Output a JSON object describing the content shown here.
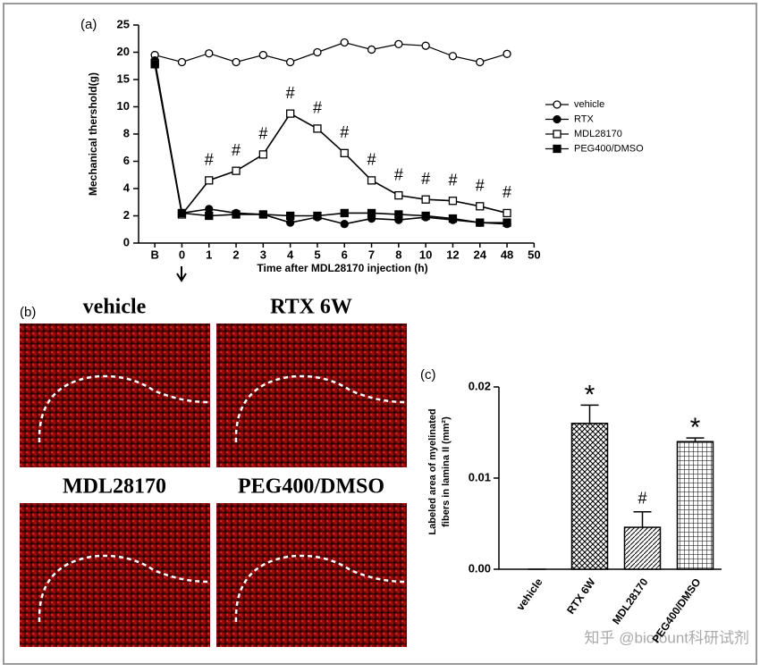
{
  "chart_data": [
    {
      "type": "line",
      "title": "(a)",
      "xlabel": "Time after MDL28170 injection (h)",
      "ylabel": "Mechanical thershold(g)",
      "categories": [
        "B",
        "0",
        "1",
        "2",
        "3",
        "4",
        "5",
        "6",
        "7",
        "8",
        "10",
        "12",
        "24",
        "48",
        "50"
      ],
      "ylim": [
        0,
        25
      ],
      "yticks": [
        0,
        2,
        4,
        6,
        8,
        10,
        15,
        20,
        25
      ],
      "series": [
        {
          "name": "vehicle",
          "color": "#000000",
          "marker": "circle-open",
          "values": [
            19.5,
            18.2,
            19.8,
            18.2,
            19.5,
            18.2,
            20,
            21.8,
            20.5,
            21.5,
            21.2,
            19.3,
            18.2,
            19.7,
            null
          ]
        },
        {
          "name": "RTX",
          "color": "#000000",
          "marker": "circle-filled",
          "values": [
            18.5,
            2.2,
            2.5,
            2.2,
            2.1,
            1.5,
            1.9,
            1.4,
            1.8,
            1.7,
            1.9,
            1.7,
            1.5,
            1.4,
            null
          ]
        },
        {
          "name": "MDL28170",
          "color": "#000000",
          "marker": "square-open",
          "values": [
            18,
            2.1,
            4.6,
            5.3,
            6.5,
            9.5,
            8.4,
            6.6,
            4.6,
            3.5,
            3.2,
            3.1,
            2.7,
            2.2,
            null
          ]
        },
        {
          "name": "PEG400/DMSO",
          "color": "#000000",
          "marker": "square-filled",
          "values": [
            17.8,
            2.2,
            2.0,
            2.1,
            2.1,
            2.0,
            2.0,
            2.2,
            2.2,
            2.1,
            2.0,
            1.8,
            1.5,
            1.5,
            null
          ]
        }
      ],
      "annotations": [
        null,
        null,
        "#",
        "#",
        "#",
        "#",
        "#",
        "#",
        "#",
        "#",
        "#",
        "#",
        "#",
        "#",
        null
      ],
      "legend": "right"
    },
    {
      "type": "bar",
      "title": "(c)",
      "ylabel": [
        "Labeled area of myelinated",
        "fibers in lamina II (mm²)"
      ],
      "categories": [
        "vehicle",
        "RTX 6W",
        "MDL28170",
        "PEG400/DMSO"
      ],
      "values": [
        0,
        0.016,
        0.0046,
        0.014
      ],
      "errors": [
        0,
        0.002,
        0.0017,
        0.0004
      ],
      "annotations": [
        null,
        "*",
        "#",
        "*"
      ],
      "color": "#000000",
      "ylim": [
        0,
        0.02
      ],
      "yticks": [
        {
          "value": 0,
          "label": "0.00"
        },
        {
          "value": 0.01,
          "label": "0.01"
        },
        {
          "value": 0.02,
          "label": "0.02"
        }
      ]
    }
  ],
  "images": {
    "label": "(b)",
    "panels": [
      "vehicle",
      "RTX 6W",
      "MDL28170",
      "PEG400/DMSO"
    ]
  },
  "watermark": "知乎 @biofount科研试剂"
}
